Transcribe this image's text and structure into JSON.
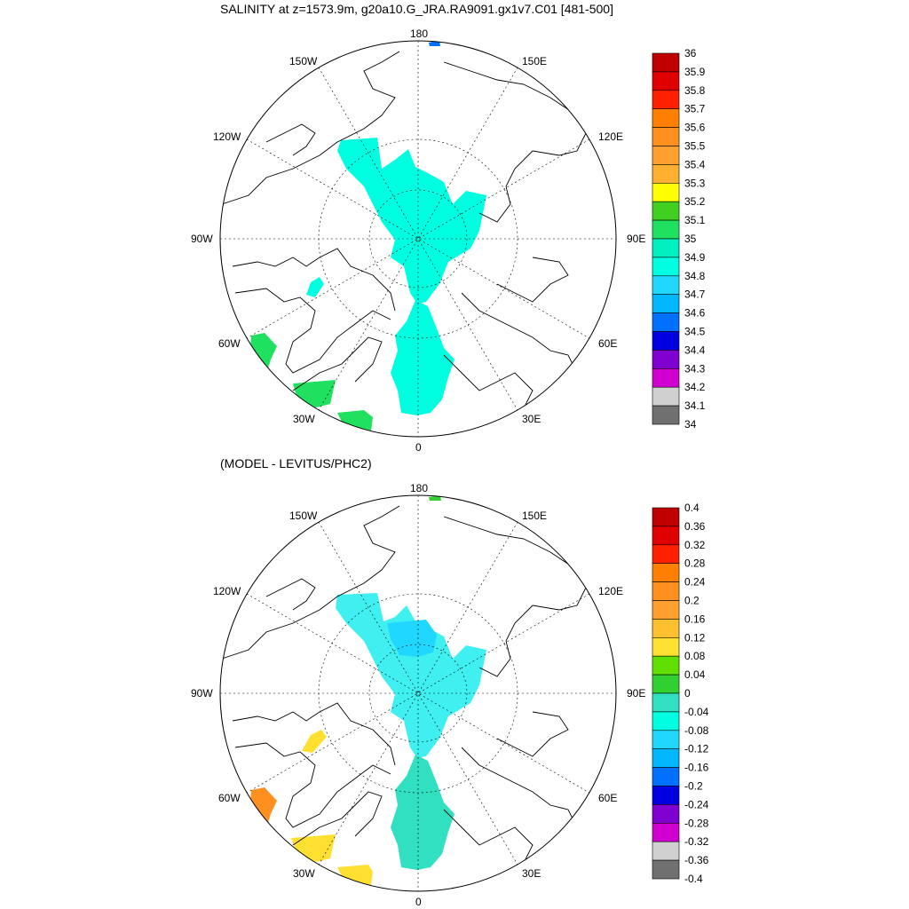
{
  "top_panel": {
    "title": "SALINITY at z=1573.9m, g20a10.G_JRA.RA9091.gx1v7.C01 [481-500]",
    "lon_labels": [
      "180",
      "150E",
      "120E",
      "90E",
      "60E",
      "30E",
      "0",
      "30W",
      "60W",
      "90W",
      "120W",
      "150W"
    ],
    "colorbar": {
      "levels": [
        "36",
        "35.9",
        "35.8",
        "35.7",
        "35.6",
        "35.5",
        "35.4",
        "35.3",
        "35.2",
        "35.1",
        "35",
        "34.9",
        "34.8",
        "34.7",
        "34.6",
        "34.5",
        "34.4",
        "34.3",
        "34.2",
        "34.1",
        "34"
      ],
      "colors": [
        "#c00000",
        "#e00000",
        "#ff2000",
        "#ff8000",
        "#ff9020",
        "#ffa030",
        "#ffb030",
        "#ffff00",
        "#40d020",
        "#20e060",
        "#00f0c0",
        "#00ffe0",
        "#20d8ff",
        "#00b8ff",
        "#0070ff",
        "#0000e0",
        "#8000d0",
        "#d000d0",
        "#d0d0d0",
        "#707070"
      ]
    },
    "fill_colors": {
      "cyan": "#00ffe0",
      "green": "#20e060",
      "blue": "#0070ff"
    }
  },
  "bottom_panel": {
    "title": "(MODEL - LEVITUS/PHC2)",
    "lon_labels": [
      "180",
      "150E",
      "120E",
      "90E",
      "60E",
      "30E",
      "0",
      "30W",
      "60W",
      "90W",
      "120W",
      "150W"
    ],
    "colorbar": {
      "levels": [
        "0.4",
        "0.36",
        "0.32",
        "0.28",
        "0.24",
        "0.2",
        "0.16",
        "0.12",
        "0.08",
        "0.04",
        "0",
        "-0.04",
        "-0.08",
        "-0.12",
        "-0.16",
        "-0.2",
        "-0.24",
        "-0.28",
        "-0.32",
        "-0.36",
        "-0.4"
      ],
      "colors": [
        "#c00000",
        "#e00000",
        "#ff2000",
        "#ff8000",
        "#ff9020",
        "#ffa030",
        "#ffc030",
        "#ffe030",
        "#60e000",
        "#30d030",
        "#30e0c0",
        "#00ffe0",
        "#20d8ff",
        "#00b8ff",
        "#0070ff",
        "#0000e0",
        "#8000d0",
        "#d000d0",
        "#d0d0d0",
        "#707070"
      ]
    },
    "fill_colors": {
      "cyan": "#40f0f0",
      "teal": "#30e0c0",
      "yellow": "#ffe030",
      "orange": "#ff9020",
      "green": "#30d030"
    }
  }
}
